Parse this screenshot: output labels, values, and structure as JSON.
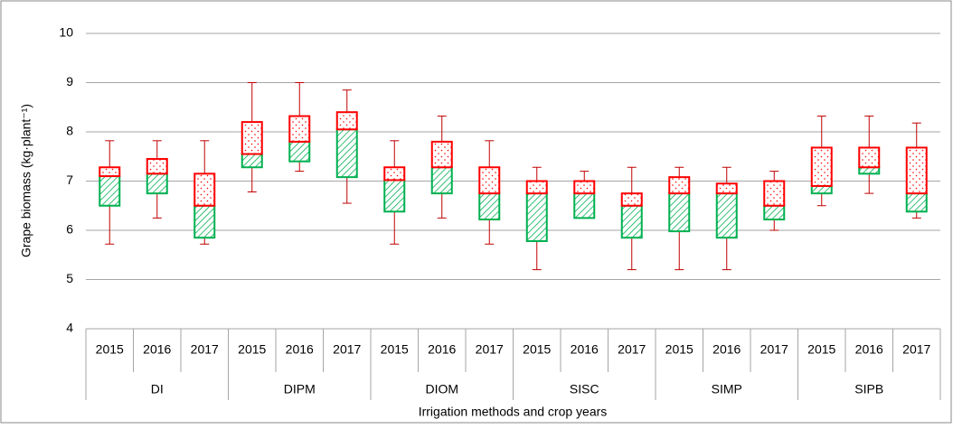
{
  "chart_data": {
    "type": "box",
    "y_label": "Grape biomass (kg·plant⁻¹)",
    "x_label": "Irrigation methods and crop years",
    "ylim": [
      4,
      10
    ],
    "yticks": [
      4,
      5,
      6,
      7,
      8,
      9,
      10
    ],
    "grid": true,
    "upper_color": "#ff0000",
    "lower_color": "#00b050",
    "whisker_color": "#c00000",
    "groups": [
      {
        "name": "DI",
        "categories": [
          "2015",
          "2016",
          "2017"
        ],
        "boxes": [
          {
            "min": 5.72,
            "q1": 6.5,
            "median": 7.1,
            "q3": 7.28,
            "max": 7.82
          },
          {
            "min": 6.25,
            "q1": 6.75,
            "median": 7.15,
            "q3": 7.45,
            "max": 7.82
          },
          {
            "min": 5.72,
            "q1": 5.85,
            "median": 6.5,
            "q3": 7.15,
            "max": 7.82
          }
        ]
      },
      {
        "name": "DIPM",
        "categories": [
          "2015",
          "2016",
          "2017"
        ],
        "boxes": [
          {
            "min": 6.78,
            "q1": 7.28,
            "median": 7.55,
            "q3": 8.2,
            "max": 9.0
          },
          {
            "min": 7.2,
            "q1": 7.4,
            "median": 7.8,
            "q3": 8.32,
            "max": 9.0
          },
          {
            "min": 6.55,
            "q1": 7.08,
            "median": 8.05,
            "q3": 8.4,
            "max": 8.85
          }
        ]
      },
      {
        "name": "DIOM",
        "categories": [
          "2015",
          "2016",
          "2017"
        ],
        "boxes": [
          {
            "min": 5.72,
            "q1": 6.38,
            "median": 7.02,
            "q3": 7.28,
            "max": 7.82
          },
          {
            "min": 6.25,
            "q1": 6.75,
            "median": 7.28,
            "q3": 7.8,
            "max": 8.32
          },
          {
            "min": 5.72,
            "q1": 6.22,
            "median": 6.75,
            "q3": 7.28,
            "max": 7.82
          }
        ]
      },
      {
        "name": "SISC",
        "categories": [
          "2015",
          "2016",
          "2017"
        ],
        "boxes": [
          {
            "min": 5.2,
            "q1": 5.78,
            "median": 6.75,
            "q3": 7.0,
            "max": 7.28
          },
          {
            "min": 6.25,
            "q1": 6.25,
            "median": 6.75,
            "q3": 7.0,
            "max": 7.2
          },
          {
            "min": 5.2,
            "q1": 5.85,
            "median": 6.5,
            "q3": 6.75,
            "max": 7.28
          }
        ]
      },
      {
        "name": "SIMP",
        "categories": [
          "2015",
          "2016",
          "2017"
        ],
        "boxes": [
          {
            "min": 5.2,
            "q1": 5.98,
            "median": 6.75,
            "q3": 7.08,
            "max": 7.28
          },
          {
            "min": 5.2,
            "q1": 5.85,
            "median": 6.75,
            "q3": 6.95,
            "max": 7.28
          },
          {
            "min": 6.0,
            "q1": 6.22,
            "median": 6.5,
            "q3": 7.0,
            "max": 7.2
          }
        ]
      },
      {
        "name": "SIPB",
        "categories": [
          "2015",
          "2016",
          "2017"
        ],
        "boxes": [
          {
            "min": 6.5,
            "q1": 6.75,
            "median": 6.9,
            "q3": 7.68,
            "max": 8.32
          },
          {
            "min": 6.75,
            "q1": 7.15,
            "median": 7.28,
            "q3": 7.68,
            "max": 8.32
          },
          {
            "min": 6.25,
            "q1": 6.38,
            "median": 6.75,
            "q3": 7.68,
            "max": 8.18
          }
        ]
      }
    ]
  }
}
